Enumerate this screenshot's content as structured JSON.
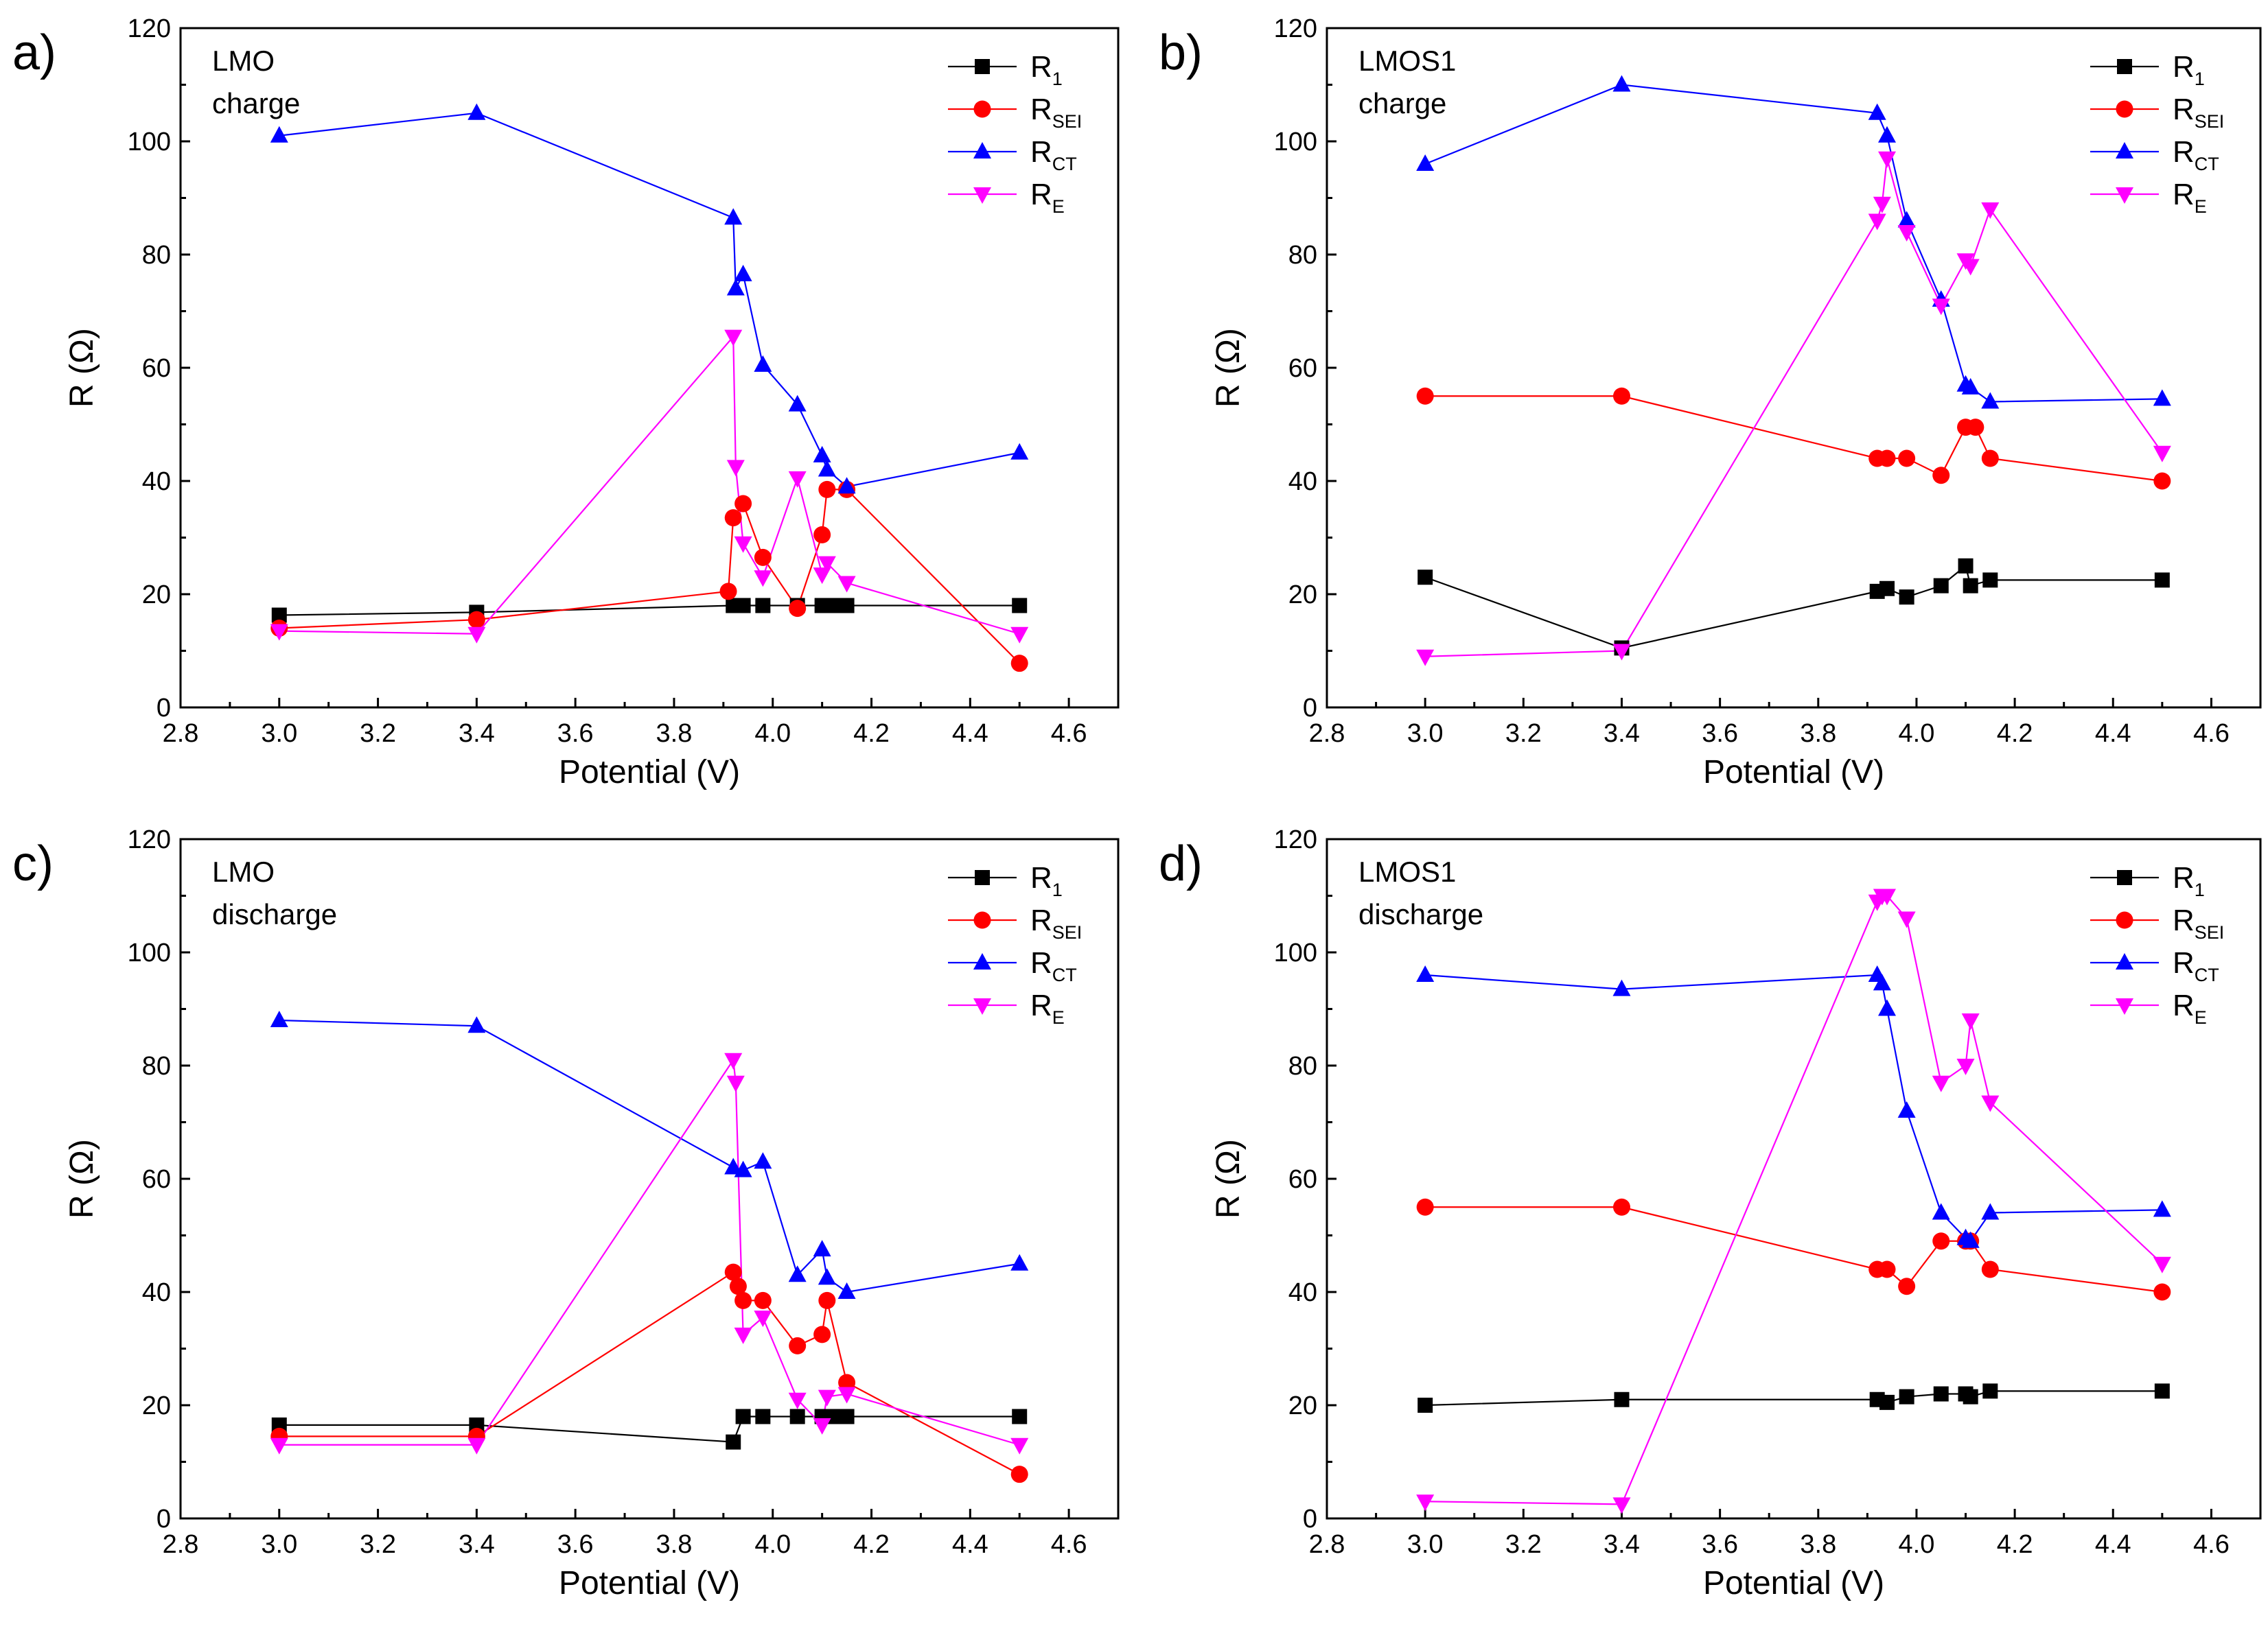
{
  "colors": {
    "R1": "#000000",
    "RSEI": "#ff0000",
    "RCT": "#0000ff",
    "RE": "#ff00ff"
  },
  "chart_data": [
    {
      "type": "line",
      "panel_letter": "a)",
      "title_lines": [
        "LMO",
        "charge"
      ],
      "xlabel": "Potential (V)",
      "ylabel": "R (Ω)",
      "xlim": [
        2.8,
        4.7
      ],
      "ylim": [
        0,
        120
      ],
      "xticks": [
        "2.8",
        "3.0",
        "3.2",
        "3.4",
        "3.6",
        "3.8",
        "4.0",
        "4.2",
        "4.4",
        "4.6"
      ],
      "yticks": [
        "0",
        "20",
        "40",
        "60",
        "80",
        "100",
        "120"
      ],
      "legend_position": "top-right",
      "series": [
        {
          "name": "R1",
          "label_main": "R",
          "label_sub": "1",
          "marker": "square",
          "x": [
            3.0,
            3.4,
            3.92,
            3.94,
            3.98,
            4.05,
            4.1,
            4.12,
            4.15,
            4.5
          ],
          "y": [
            16.3,
            16.8,
            18,
            18,
            18,
            18,
            18,
            18,
            18,
            18
          ]
        },
        {
          "name": "RSEI",
          "label_main": "R",
          "label_sub": "SEI",
          "marker": "circle",
          "x": [
            3.0,
            3.4,
            3.91,
            3.92,
            3.94,
            3.98,
            4.05,
            4.1,
            4.11,
            4.15,
            4.5
          ],
          "y": [
            14,
            15.5,
            20.5,
            33.5,
            36,
            26.5,
            17.5,
            30.5,
            38.5,
            38.5,
            7.8
          ]
        },
        {
          "name": "RCT",
          "label_main": "R",
          "label_sub": "CT",
          "marker": "triangle-up",
          "x": [
            3.0,
            3.4,
            3.92,
            3.925,
            3.94,
            3.98,
            4.05,
            4.1,
            4.11,
            4.15,
            4.5
          ],
          "y": [
            101,
            105,
            86.5,
            74,
            76.5,
            60.5,
            53.5,
            44.5,
            42,
            39,
            45
          ]
        },
        {
          "name": "RE",
          "label_main": "R",
          "label_sub": "E",
          "marker": "triangle-down",
          "x": [
            3.0,
            3.4,
            3.92,
            3.925,
            3.94,
            3.98,
            4.05,
            4.1,
            4.11,
            4.15,
            4.5
          ],
          "y": [
            13.5,
            13,
            65.5,
            42.5,
            29,
            23,
            40.5,
            23.5,
            25.5,
            22,
            13
          ]
        }
      ]
    },
    {
      "type": "line",
      "panel_letter": "b)",
      "title_lines": [
        "LMOS1",
        "charge"
      ],
      "xlabel": "Potential (V)",
      "ylabel": "R (Ω)",
      "xlim": [
        2.8,
        4.7
      ],
      "ylim": [
        0,
        120
      ],
      "xticks": [
        "2.8",
        "3.0",
        "3.2",
        "3.4",
        "3.6",
        "3.8",
        "4.0",
        "4.2",
        "4.4",
        "4.6"
      ],
      "yticks": [
        "0",
        "20",
        "40",
        "60",
        "80",
        "100",
        "120"
      ],
      "legend_position": "top-right",
      "series": [
        {
          "name": "R1",
          "label_main": "R",
          "label_sub": "1",
          "marker": "square",
          "x": [
            3.0,
            3.4,
            3.92,
            3.94,
            3.98,
            4.05,
            4.1,
            4.11,
            4.15,
            4.5
          ],
          "y": [
            23,
            10.5,
            20.5,
            21,
            19.5,
            21.5,
            25,
            21.5,
            22.5,
            22.5
          ]
        },
        {
          "name": "RSEI",
          "label_main": "R",
          "label_sub": "SEI",
          "marker": "circle",
          "x": [
            3.0,
            3.4,
            3.92,
            3.94,
            3.98,
            4.05,
            4.1,
            4.12,
            4.15,
            4.5
          ],
          "y": [
            55,
            55,
            44,
            44,
            44,
            41,
            49.5,
            49.5,
            44,
            40
          ]
        },
        {
          "name": "RCT",
          "label_main": "R",
          "label_sub": "CT",
          "marker": "triangle-up",
          "x": [
            3.0,
            3.4,
            3.92,
            3.94,
            3.98,
            4.05,
            4.1,
            4.11,
            4.15,
            4.5
          ],
          "y": [
            96,
            110,
            105,
            101,
            86,
            72,
            57,
            56.5,
            54,
            54.5
          ]
        },
        {
          "name": "RE",
          "label_main": "R",
          "label_sub": "E",
          "marker": "triangle-down",
          "x": [
            3.0,
            3.4,
            3.92,
            3.93,
            3.94,
            3.98,
            4.05,
            4.1,
            4.11,
            4.15,
            4.5
          ],
          "y": [
            9,
            10,
            86,
            89,
            97,
            84,
            71,
            79,
            78,
            88,
            45
          ]
        }
      ]
    },
    {
      "type": "line",
      "panel_letter": "c)",
      "title_lines": [
        "LMO",
        "discharge"
      ],
      "xlabel": "Potential (V)",
      "ylabel": "R (Ω)",
      "xlim": [
        2.8,
        4.7
      ],
      "ylim": [
        0,
        120
      ],
      "xticks": [
        "2.8",
        "3.0",
        "3.2",
        "3.4",
        "3.6",
        "3.8",
        "4.0",
        "4.2",
        "4.4",
        "4.6"
      ],
      "yticks": [
        "0",
        "20",
        "40",
        "60",
        "80",
        "100",
        "120"
      ],
      "legend_position": "top-right",
      "series": [
        {
          "name": "R1",
          "label_main": "R",
          "label_sub": "1",
          "marker": "square",
          "x": [
            3.0,
            3.4,
            3.92,
            3.94,
            3.98,
            4.05,
            4.1,
            4.12,
            4.15,
            4.5
          ],
          "y": [
            16.5,
            16.5,
            13.5,
            18,
            18,
            18,
            18,
            18,
            18,
            18
          ]
        },
        {
          "name": "RSEI",
          "label_main": "R",
          "label_sub": "SEI",
          "marker": "circle",
          "x": [
            3.0,
            3.4,
            3.92,
            3.93,
            3.94,
            3.98,
            4.05,
            4.1,
            4.11,
            4.15,
            4.5
          ],
          "y": [
            14.5,
            14.5,
            43.5,
            41,
            38.5,
            38.5,
            30.5,
            32.5,
            38.5,
            24,
            7.8
          ]
        },
        {
          "name": "RCT",
          "label_main": "R",
          "label_sub": "CT",
          "marker": "triangle-up",
          "x": [
            3.0,
            3.4,
            3.92,
            3.94,
            3.98,
            4.05,
            4.1,
            4.11,
            4.15,
            4.5
          ],
          "y": [
            88,
            87,
            62,
            61.5,
            63,
            43,
            47.5,
            42.5,
            40,
            45
          ]
        },
        {
          "name": "RE",
          "label_main": "R",
          "label_sub": "E",
          "marker": "triangle-down",
          "x": [
            3.0,
            3.4,
            3.92,
            3.925,
            3.94,
            3.98,
            4.05,
            4.1,
            4.11,
            4.15,
            4.5
          ],
          "y": [
            13,
            13,
            81,
            77,
            32.5,
            35.5,
            21,
            16.5,
            21.5,
            22,
            13
          ]
        }
      ]
    },
    {
      "type": "line",
      "panel_letter": "d)",
      "title_lines": [
        "LMOS1",
        "discharge"
      ],
      "xlabel": "Potential (V)",
      "ylabel": "R (Ω)",
      "xlim": [
        2.8,
        4.7
      ],
      "ylim": [
        0,
        120
      ],
      "xticks": [
        "2.8",
        "3.0",
        "3.2",
        "3.4",
        "3.6",
        "3.8",
        "4.0",
        "4.2",
        "4.4",
        "4.6"
      ],
      "yticks": [
        "0",
        "20",
        "40",
        "60",
        "80",
        "100",
        "120"
      ],
      "legend_position": "top-right",
      "series": [
        {
          "name": "R1",
          "label_main": "R",
          "label_sub": "1",
          "marker": "square",
          "x": [
            3.0,
            3.4,
            3.92,
            3.94,
            3.98,
            4.05,
            4.1,
            4.11,
            4.15,
            4.5
          ],
          "y": [
            20,
            21,
            21,
            20.5,
            21.5,
            22,
            22,
            21.5,
            22.5,
            22.5
          ]
        },
        {
          "name": "RSEI",
          "label_main": "R",
          "label_sub": "SEI",
          "marker": "circle",
          "x": [
            3.0,
            3.4,
            3.92,
            3.94,
            3.98,
            4.05,
            4.1,
            4.11,
            4.15,
            4.5
          ],
          "y": [
            55,
            55,
            44,
            44,
            41,
            49,
            49,
            49,
            44,
            40
          ]
        },
        {
          "name": "RCT",
          "label_main": "R",
          "label_sub": "CT",
          "marker": "triangle-up",
          "x": [
            3.0,
            3.4,
            3.92,
            3.93,
            3.94,
            3.98,
            4.05,
            4.1,
            4.11,
            4.15,
            4.5
          ],
          "y": [
            96,
            93.5,
            96,
            94.5,
            90,
            72,
            54,
            49.5,
            49,
            54,
            54.5
          ]
        },
        {
          "name": "RE",
          "label_main": "R",
          "label_sub": "E",
          "marker": "triangle-down",
          "x": [
            3.0,
            3.4,
            3.92,
            3.93,
            3.94,
            3.98,
            4.05,
            4.1,
            4.11,
            4.15,
            4.5
          ],
          "y": [
            3,
            2.5,
            109,
            110,
            110,
            106,
            77,
            80,
            88,
            73.5,
            45
          ]
        }
      ]
    }
  ]
}
